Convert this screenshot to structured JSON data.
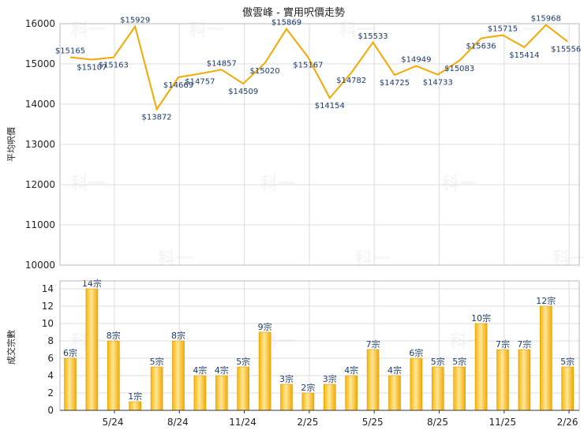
{
  "chart_data": [
    {
      "type": "line",
      "title": "傲雲峰 - 實用呎價走勢",
      "ylabel": "平均呎價",
      "ylim": [
        10000,
        16000
      ],
      "yticks": [
        10000,
        11000,
        12000,
        13000,
        14000,
        15000,
        16000
      ],
      "grid": true,
      "color": "#f5a800",
      "values": [
        15165,
        15107,
        15163,
        15929,
        13872,
        14669,
        14757,
        14857,
        14509,
        15020,
        15869,
        15167,
        14154,
        14782,
        15533,
        14725,
        14949,
        14733,
        15083,
        15636,
        15715,
        15414,
        15968,
        15556
      ],
      "labels": [
        "$15165",
        "$15107",
        "$15163",
        "$15929",
        "$13872",
        "$14669",
        "$14757",
        "$14857",
        "$14509",
        "$15020",
        "$15869",
        "$15167",
        "$14154",
        "$14782",
        "$15533",
        "$14725",
        "$14949",
        "$14733",
        "$15083",
        "$15636",
        "$15715",
        "$15414",
        "$15968",
        "$15556"
      ]
    },
    {
      "type": "bar",
      "ylabel": "成交宗數",
      "ylim": [
        0,
        14
      ],
      "yticks": [
        0,
        2,
        4,
        6,
        8,
        10,
        12,
        14
      ],
      "grid": true,
      "color": "#f5a800",
      "values": [
        6,
        14,
        8,
        1,
        5,
        8,
        4,
        4,
        5,
        9,
        3,
        2,
        3,
        4,
        7,
        4,
        6,
        5,
        5,
        10,
        7,
        7,
        12,
        5
      ],
      "labels": [
        "6宗",
        "14宗",
        "8宗",
        "1宗",
        "5宗",
        "8宗",
        "4宗",
        "4宗",
        "5宗",
        "9宗",
        "3宗",
        "2宗",
        "3宗",
        "4宗",
        "7宗",
        "4宗",
        "6宗",
        "5宗",
        "5宗",
        "10宗",
        "7宗",
        "7宗",
        "12宗",
        "5宗"
      ],
      "categories": [
        "5/24",
        "8/24",
        "11/24",
        "2/25",
        "5/25",
        "8/25",
        "11/25",
        "2/26"
      ]
    }
  ],
  "watermark": "科一"
}
